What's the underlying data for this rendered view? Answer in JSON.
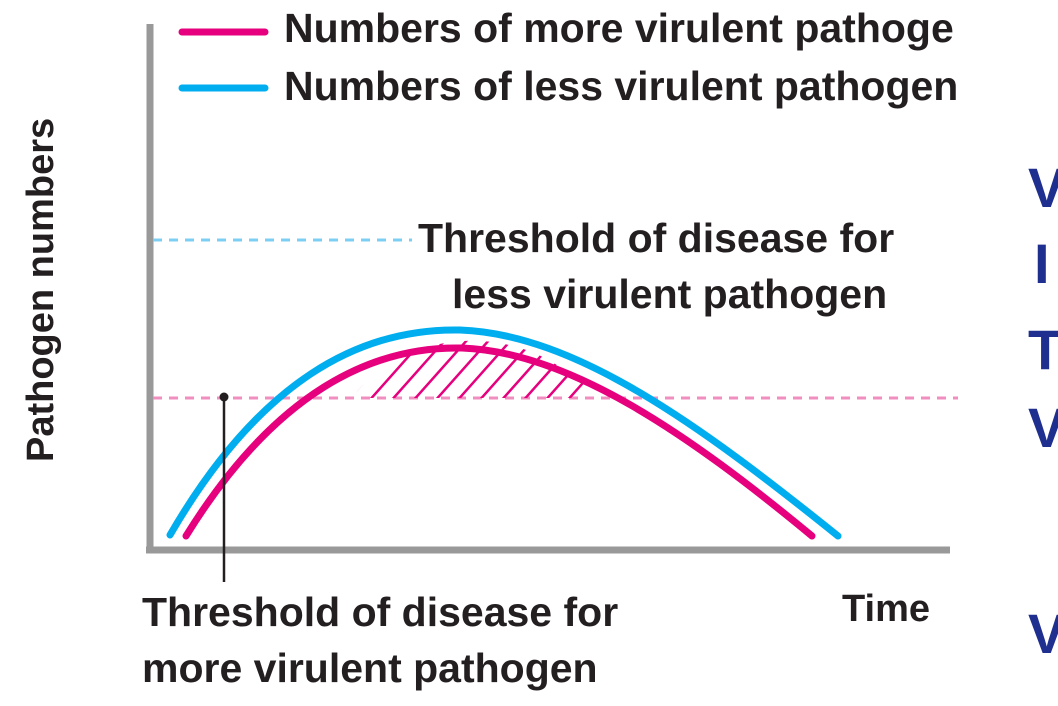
{
  "figure": {
    "y_axis_label": "Pathogen numbers",
    "x_axis_label": "Time",
    "legend": [
      {
        "label": "Numbers of more virulent pathoge",
        "color": "#e6007e"
      },
      {
        "label": "Numbers of less virulent pathogen",
        "color": "#00aeef"
      }
    ],
    "thresholds": {
      "less_virulent_line1": "Threshold of disease for",
      "less_virulent_line2": "less virulent pathogen",
      "more_virulent_line1": "Threshold of disease for",
      "more_virulent_line2": "more virulent pathogen"
    },
    "colors": {
      "more_virulent": "#e6007e",
      "less_virulent": "#00aeef",
      "axis": "#999999",
      "text": "#231f20",
      "cropped_text": "#1f2f8f"
    }
  },
  "cropped_side_text": [
    "V",
    "I",
    "T",
    "V",
    "V"
  ]
}
